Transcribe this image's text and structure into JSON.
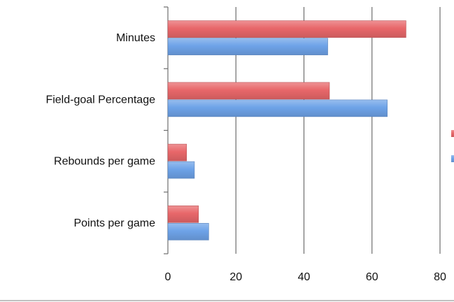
{
  "chart_data": {
    "type": "bar",
    "orientation": "horizontal",
    "categories": [
      "Minutes",
      "Field-goal Percentage",
      "Rebounds per game",
      "Points per game"
    ],
    "series": [
      {
        "values": [
          70,
          47.5,
          5.5,
          9
        ],
        "color": "#e8676a"
      },
      {
        "values": [
          47,
          64.5,
          7.8,
          12
        ],
        "color": "#6ea3e8"
      }
    ],
    "xticks": [
      0,
      20,
      40,
      60,
      80
    ],
    "xlim": [
      0,
      80
    ],
    "grid": true,
    "legend": "right"
  }
}
